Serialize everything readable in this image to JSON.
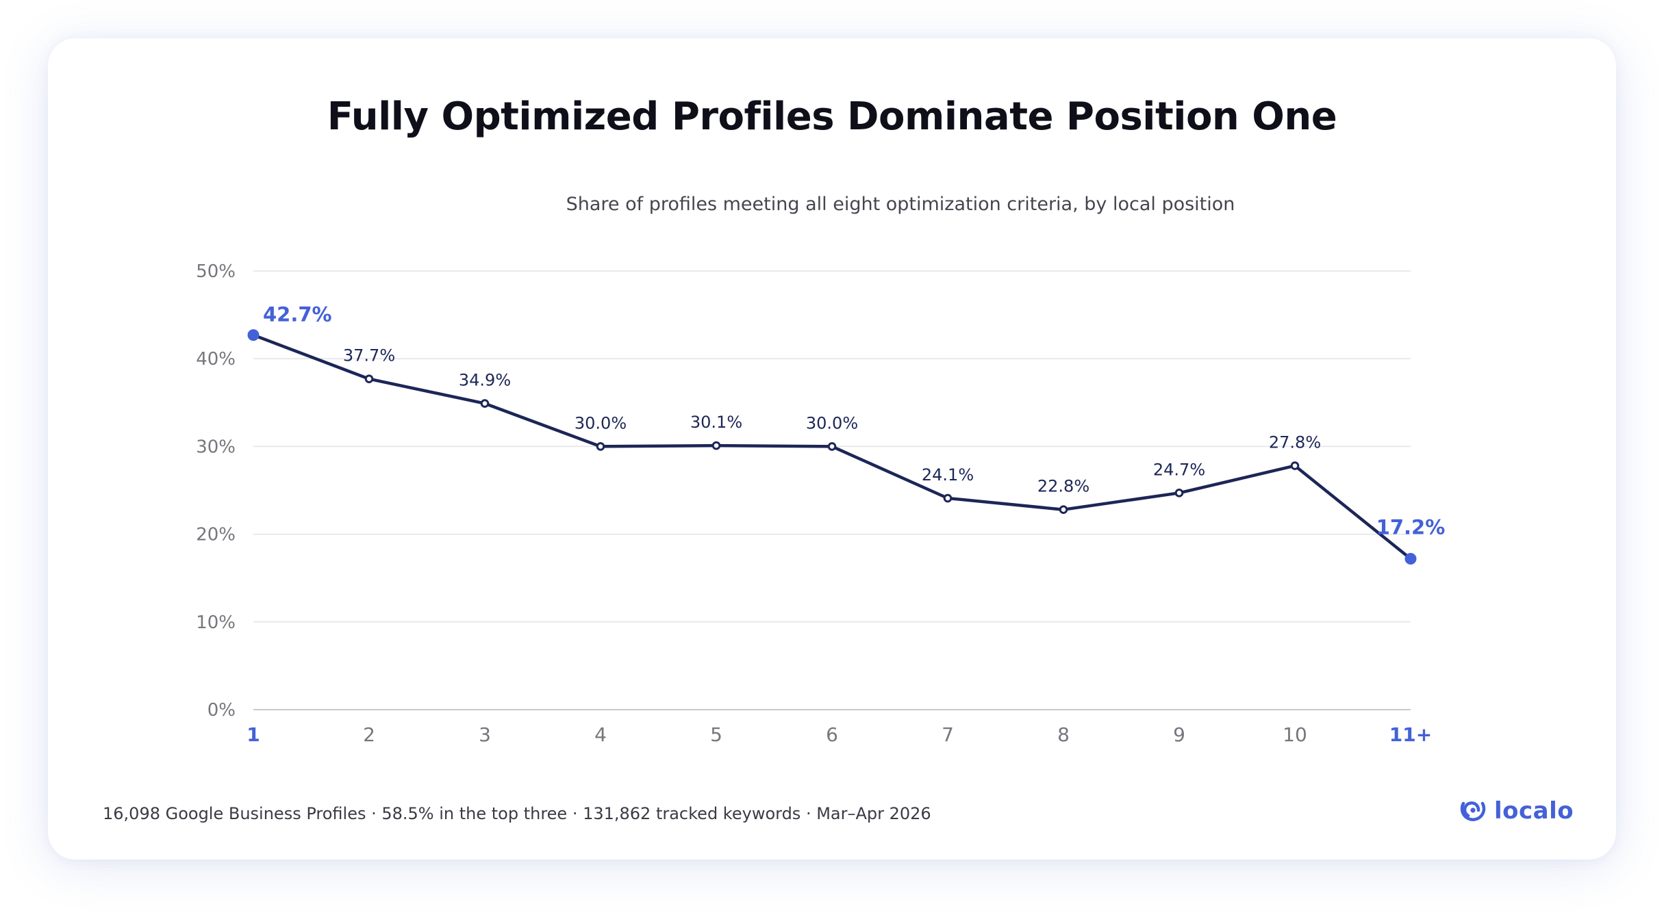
{
  "title": "Fully Optimized Profiles Dominate Position One",
  "subtitle": "Share of profiles meeting all eight optimization criteria, by local position",
  "footer": "16,098 Google Business Profiles · 58.5% in the top three · 131,862 tracked keywords · Mar–Apr 2026",
  "logo": {
    "text": "localo",
    "icon": "location-pin-icon"
  },
  "colors": {
    "line": "#1c2657",
    "accent": "#4361d8",
    "grid": "#e3e3e8",
    "tick_label": "#76767e",
    "data_label": "#1c2657"
  },
  "chart_data": {
    "type": "line",
    "categories": [
      "1",
      "2",
      "3",
      "4",
      "5",
      "6",
      "7",
      "8",
      "9",
      "10",
      "11+"
    ],
    "series": [
      {
        "values": [
          42.7,
          37.7,
          34.9,
          30.0,
          30.1,
          30.0,
          24.1,
          22.8,
          24.7,
          27.8,
          17.2
        ]
      }
    ],
    "data_labels": [
      "42.7%",
      "37.7%",
      "34.9%",
      "30.0%",
      "30.1%",
      "30.0%",
      "24.1%",
      "22.8%",
      "24.7%",
      "27.8%",
      "17.2%"
    ],
    "highlighted_categories": [
      "1",
      "11+"
    ],
    "y_ticks": [
      "0%",
      "10%",
      "20%",
      "30%",
      "40%",
      "50%"
    ],
    "ylim": [
      0,
      50
    ],
    "y_tick_step": 10,
    "xlabel": "",
    "ylabel": "",
    "grid": true,
    "legend": "none"
  }
}
